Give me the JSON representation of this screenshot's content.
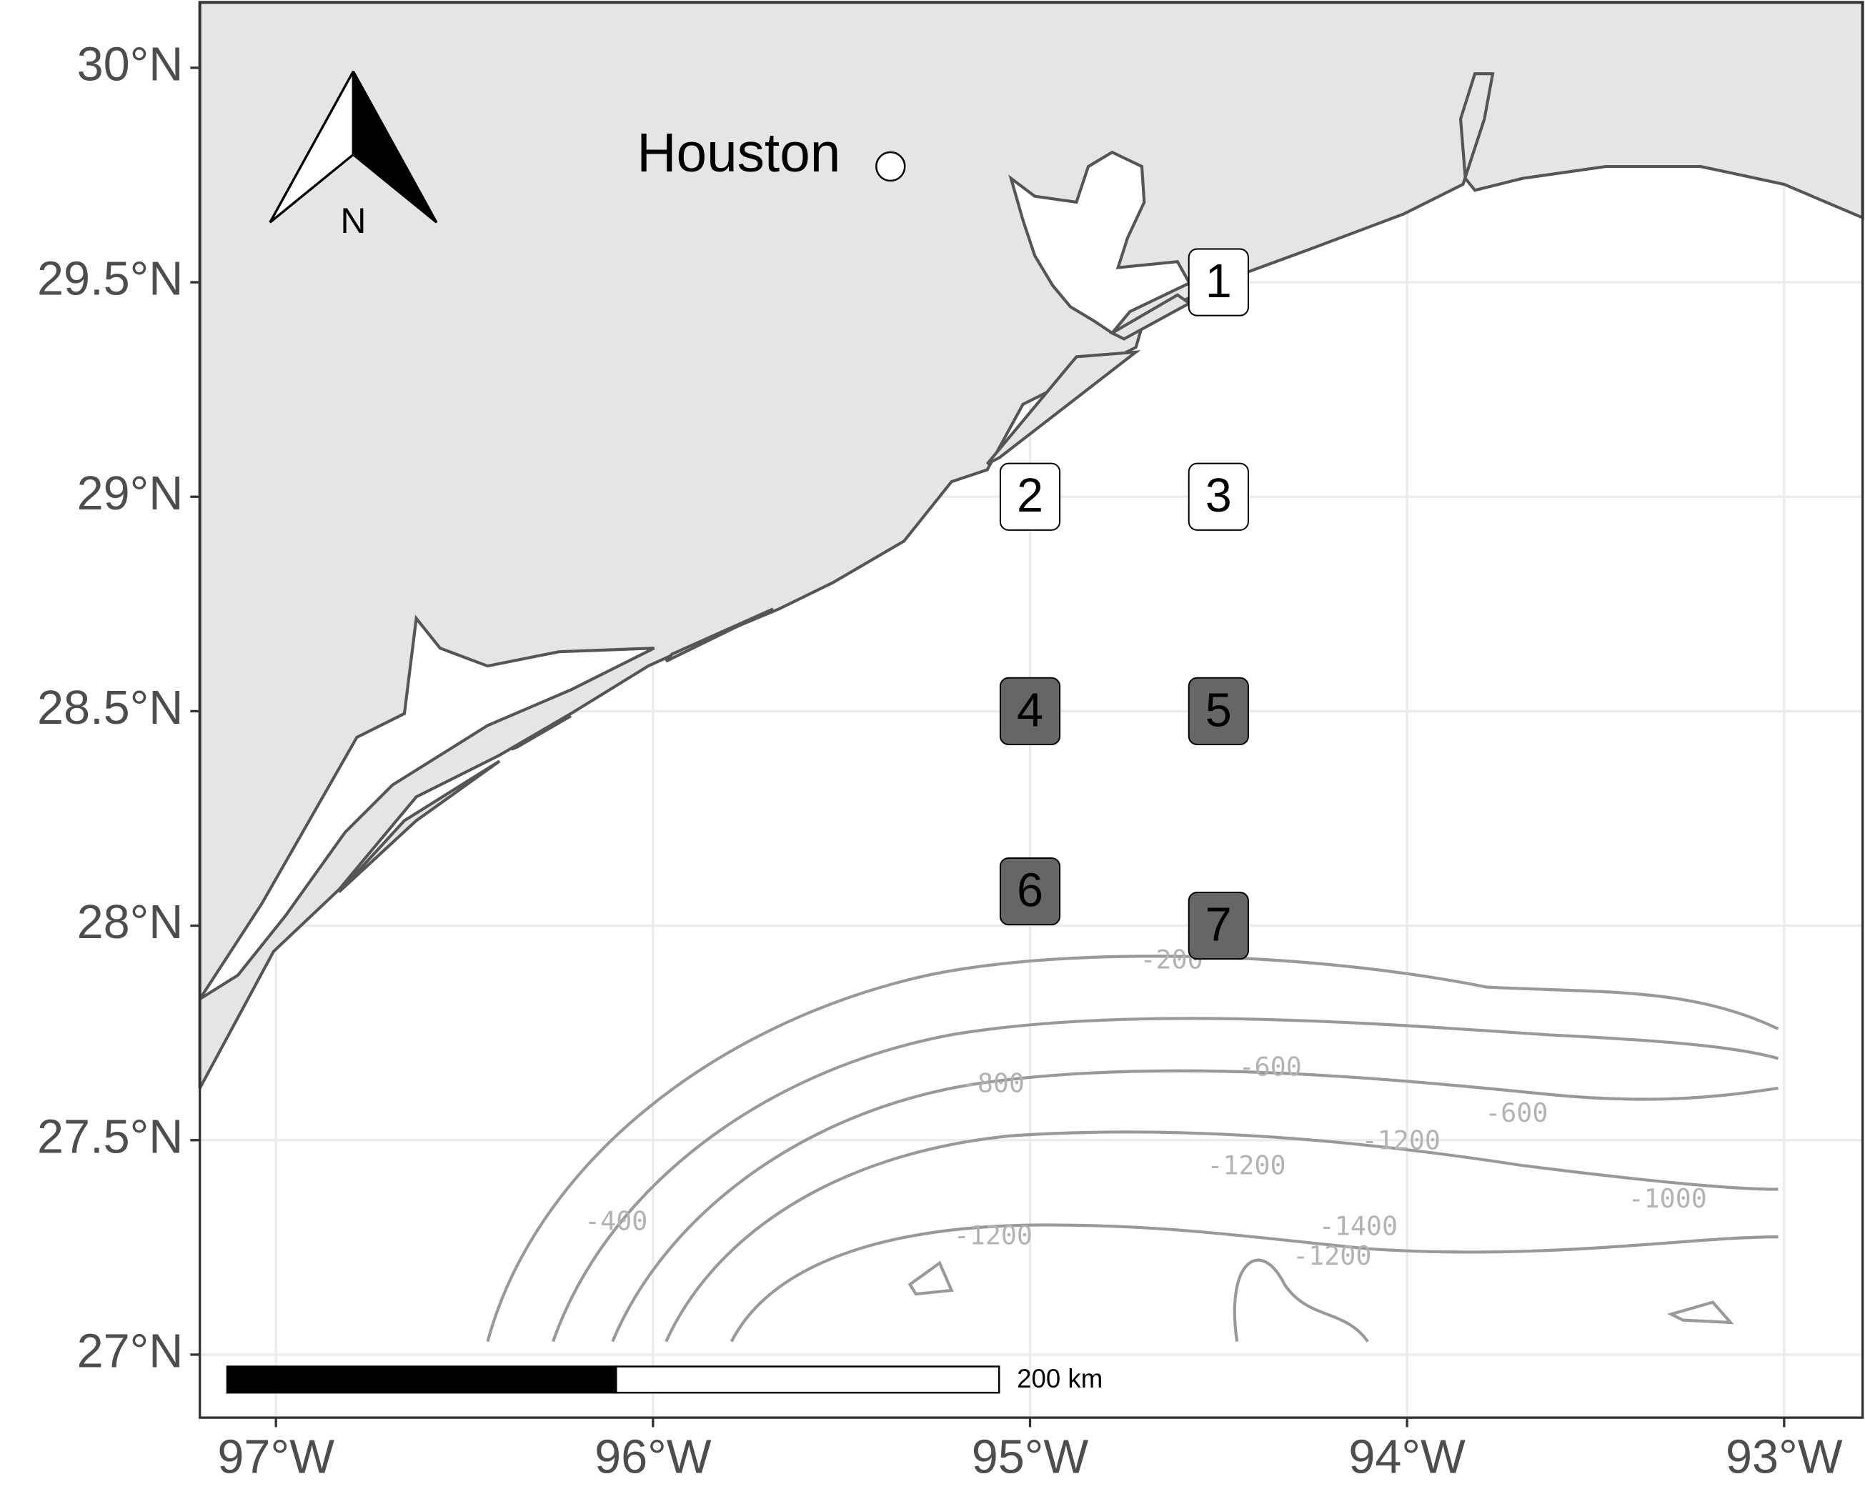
{
  "map": {
    "xticks": [
      {
        "value": -97,
        "label": "97°W"
      },
      {
        "value": -96,
        "label": "96°W"
      },
      {
        "value": -95,
        "label": "95°W"
      },
      {
        "value": -94,
        "label": "94°W"
      },
      {
        "value": -93,
        "label": "93°W"
      }
    ],
    "yticks": [
      {
        "value": 30,
        "label": "30°N"
      },
      {
        "value": 29.5,
        "label": "29.5°N"
      },
      {
        "value": 29,
        "label": "29°N"
      },
      {
        "value": 28.5,
        "label": "28.5°N"
      },
      {
        "value": 28,
        "label": "28°N"
      },
      {
        "value": 27.5,
        "label": "27.5°N"
      },
      {
        "value": 27,
        "label": "27°N"
      }
    ],
    "city": {
      "label": "Houston",
      "lon": -95.37,
      "lat": 29.77
    },
    "north_arrow": "N",
    "scale_bar": "200 km",
    "stations": [
      {
        "label": "1",
        "lon": -94.5,
        "lat": 29.5,
        "color": "#ffffff"
      },
      {
        "label": "2",
        "lon": -95.0,
        "lat": 29.0,
        "color": "#ffffff"
      },
      {
        "label": "3",
        "lon": -94.5,
        "lat": 29.0,
        "color": "#ffffff"
      },
      {
        "label": "4",
        "lon": -95.0,
        "lat": 28.5,
        "color": "#666666"
      },
      {
        "label": "5",
        "lon": -94.5,
        "lat": 28.5,
        "color": "#666666"
      },
      {
        "label": "6",
        "lon": -95.0,
        "lat": 28.08,
        "color": "#666666"
      },
      {
        "label": "7",
        "lon": -94.5,
        "lat": 28.0,
        "color": "#666666"
      }
    ],
    "contour_labels": [
      "-200",
      "-600",
      "-800",
      "-600",
      "-1200",
      "-1200",
      "-400",
      "-1000",
      "-1400",
      "-1200",
      "-1200"
    ]
  }
}
